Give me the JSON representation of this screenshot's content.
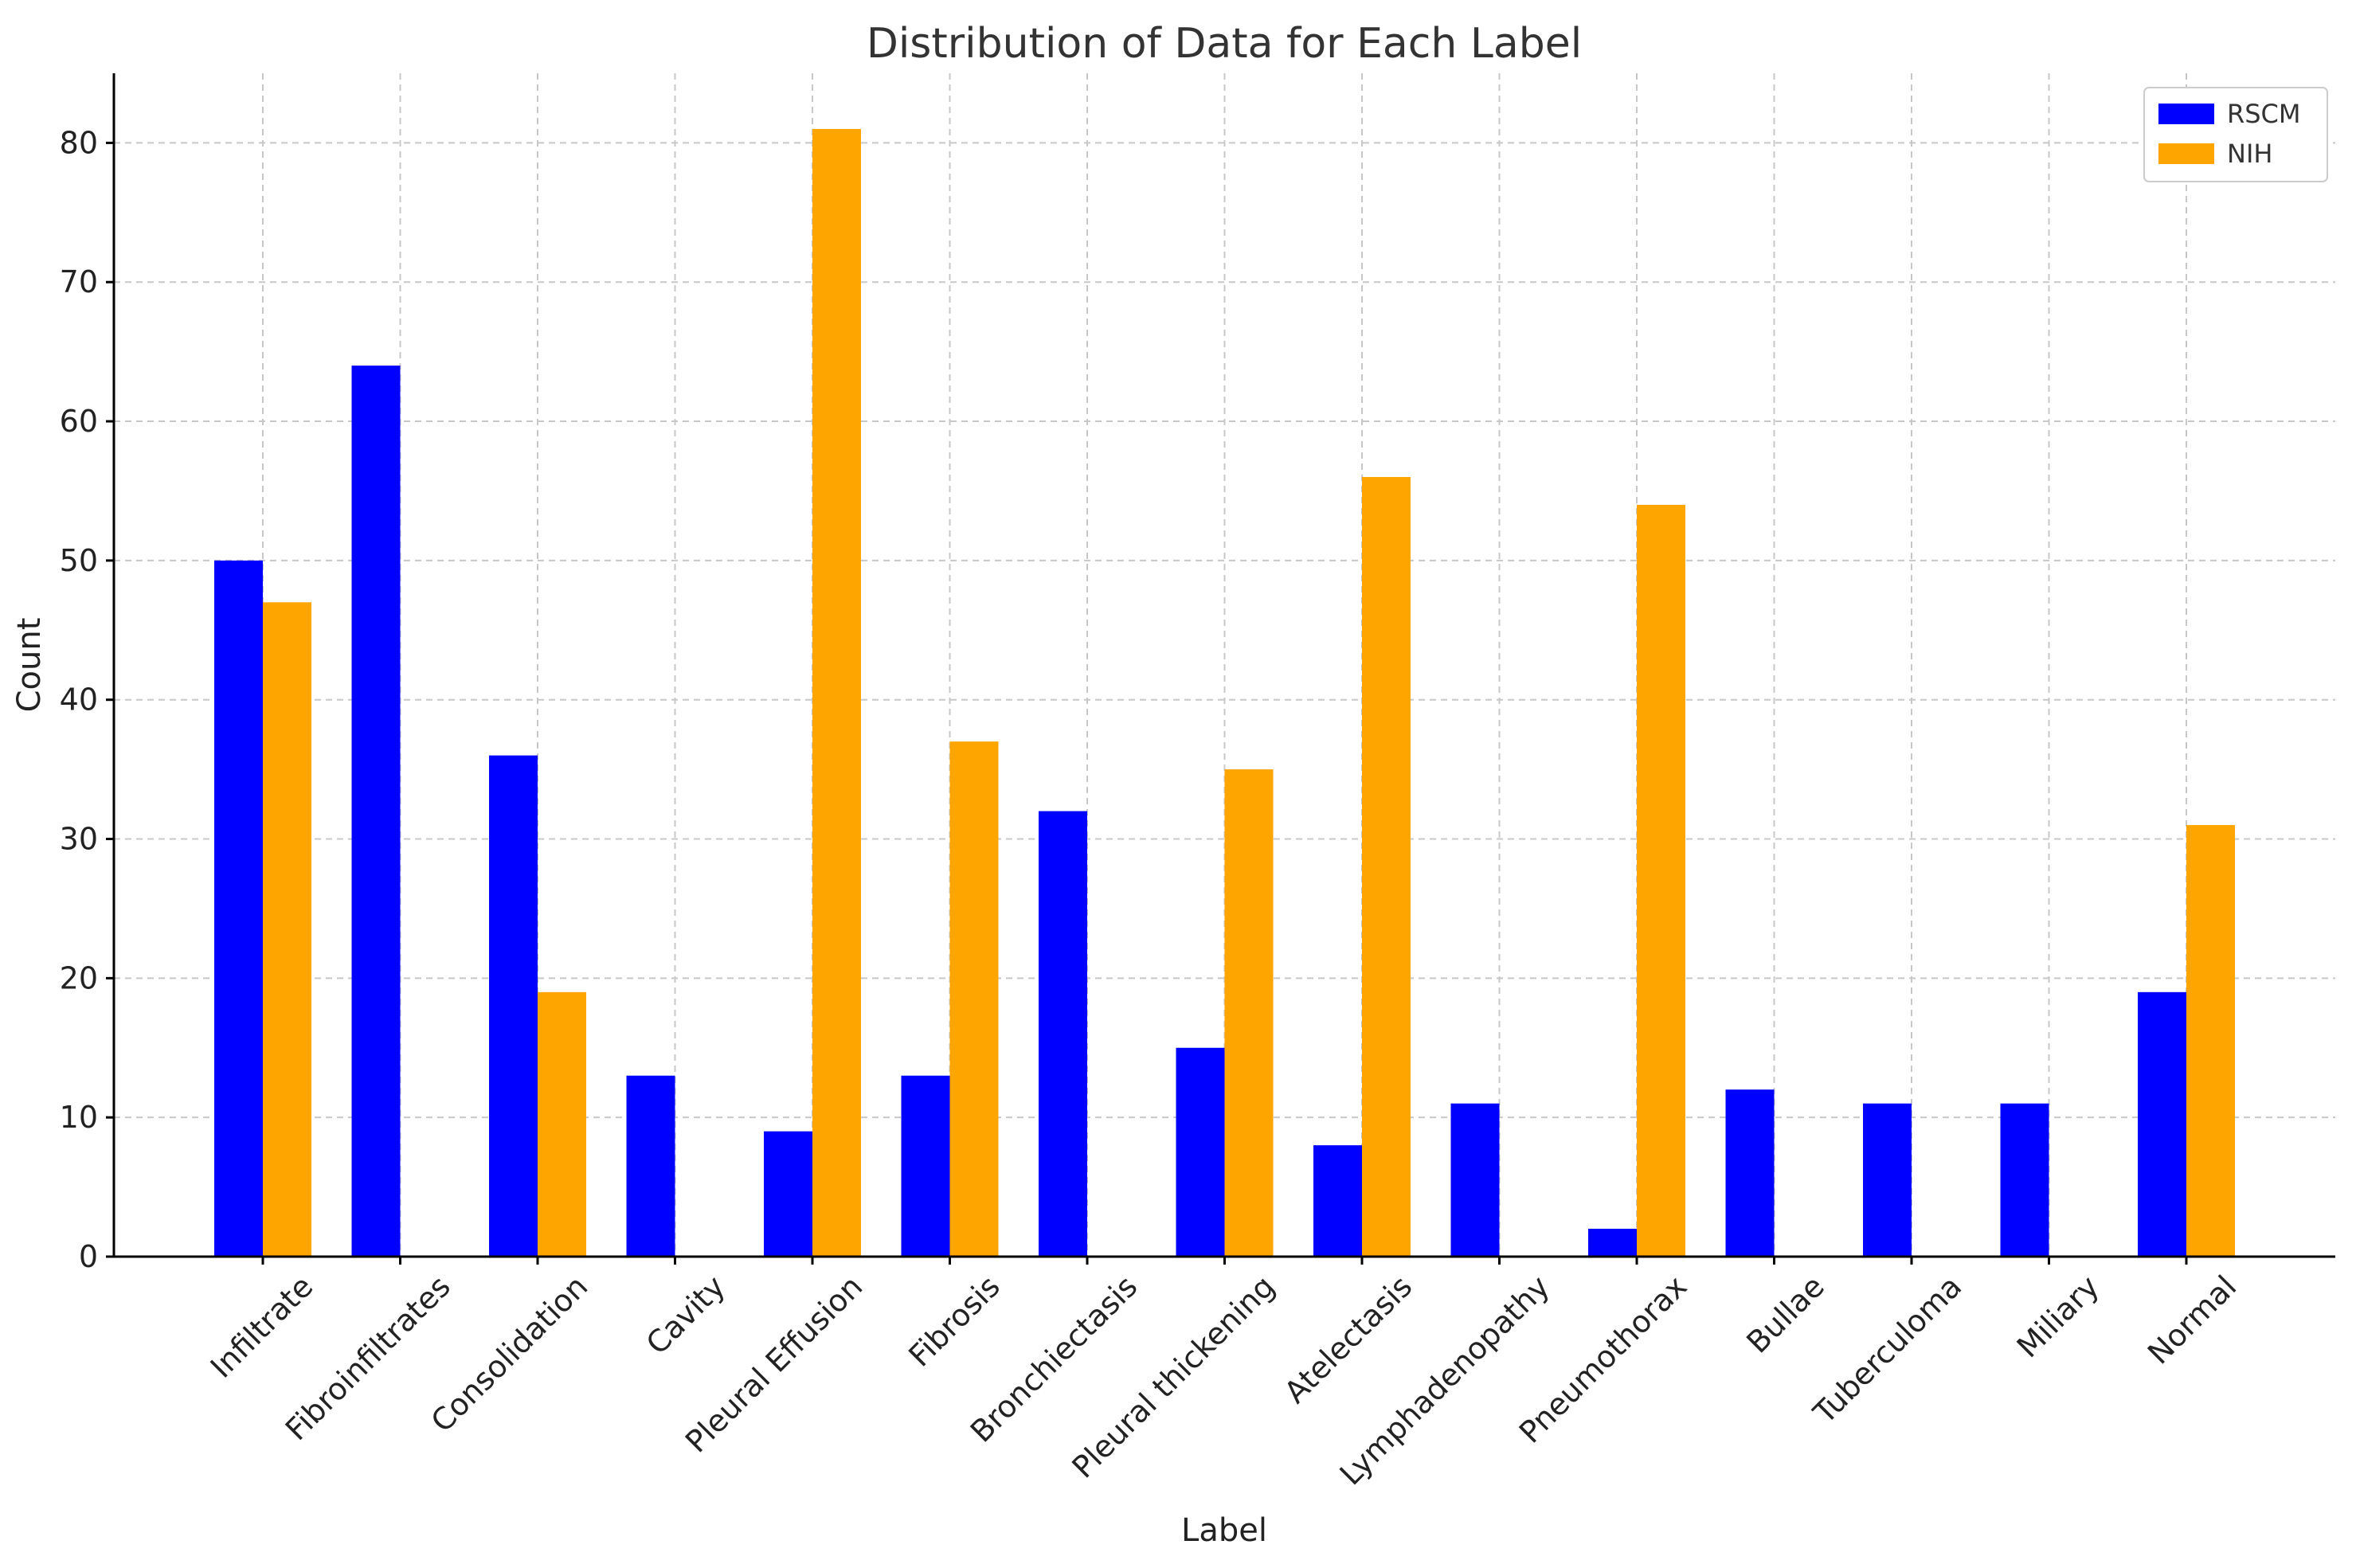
{
  "chart_data": {
    "type": "bar",
    "title": "Distribution of Data for Each Label",
    "xlabel": "Label",
    "ylabel": "Count",
    "ylim": [
      0,
      85
    ],
    "yticks": [
      0,
      10,
      20,
      30,
      40,
      50,
      60,
      70,
      80
    ],
    "grid": true,
    "legend_position": "top-right",
    "categories": [
      "Infiltrate",
      "Fibroinfiltrates",
      "Consolidation",
      "Cavity",
      "Pleural Effusion",
      "Fibrosis",
      "Bronchiectasis",
      "Pleural thickening",
      "Atelectasis",
      "Lymphadenopathy",
      "Pneumothorax",
      "Bullae",
      "Tuberculoma",
      "Miliary",
      "Normal"
    ],
    "series": [
      {
        "name": "RSCM",
        "color": "#0000ff",
        "values": [
          50,
          64,
          36,
          13,
          9,
          13,
          32,
          15,
          8,
          11,
          2,
          12,
          11,
          11,
          19
        ]
      },
      {
        "name": "NIH",
        "color": "#ffa500",
        "values": [
          47,
          0,
          19,
          0,
          81,
          37,
          0,
          35,
          56,
          0,
          54,
          0,
          0,
          0,
          31
        ]
      }
    ]
  }
}
